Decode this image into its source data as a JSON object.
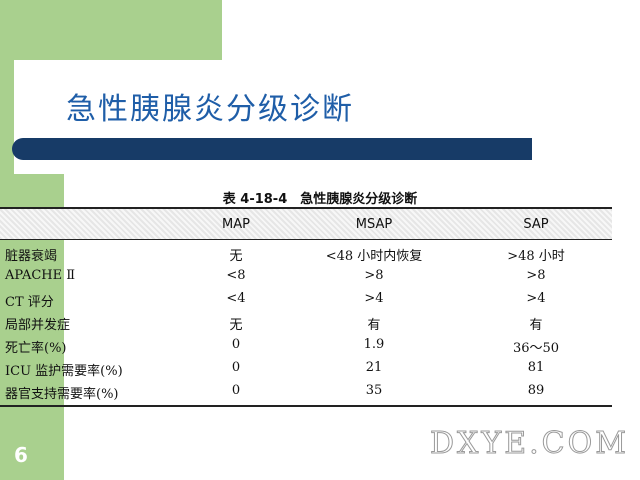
{
  "slide": {
    "title": "急性胰腺炎分级诊断",
    "page_number": "6",
    "colors": {
      "green": "#a9d08e",
      "title_blue": "#1f5ea8",
      "bar_navy": "#173b67"
    }
  },
  "table": {
    "caption": "表 4-18-4　急性胰腺炎分级诊断",
    "columns": [
      "",
      "MAP",
      "MSAP",
      "SAP"
    ],
    "rows": [
      {
        "label": "脏器衰竭",
        "map": "无",
        "msap": "<48 小时内恢复",
        "sap": ">48 小时"
      },
      {
        "label": "APACHE Ⅱ",
        "map": "<8",
        "msap": ">8",
        "sap": ">8"
      },
      {
        "label": "CT 评分",
        "map": "<4",
        "msap": ">4",
        "sap": ">4"
      },
      {
        "label": "局部并发症",
        "map": "无",
        "msap": "有",
        "sap": "有"
      },
      {
        "label": "死亡率(%)",
        "map": "0",
        "msap": "1.9",
        "sap": "36～50"
      },
      {
        "label": "ICU 监护需要率(%)",
        "map": "0",
        "msap": "21",
        "sap": "81"
      },
      {
        "label": "器官支持需要率(%)",
        "map": "0",
        "msap": "35",
        "sap": "89"
      }
    ]
  },
  "watermark": {
    "text": "DXYE.COM"
  }
}
